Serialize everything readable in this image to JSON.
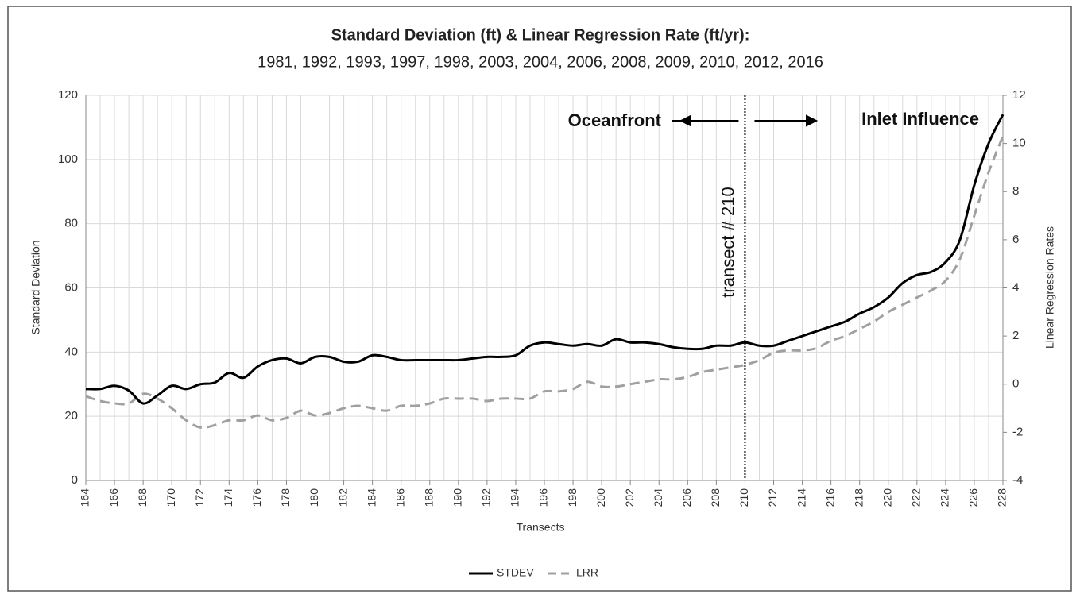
{
  "chart_data": {
    "type": "line",
    "title": "Standard Deviation (ft) & Linear Regression Rate (ft/yr):",
    "subtitle": "1981, 1992, 1993, 1997, 1998, 2003, 2004, 2006, 2008, 2009, 2010, 2012, 2016",
    "xlabel": "Transects",
    "ylabel": "Standard Deviation",
    "y2label": "Linear Regression Rates",
    "x": [
      164,
      165,
      166,
      167,
      168,
      169,
      170,
      171,
      172,
      173,
      174,
      175,
      176,
      177,
      178,
      179,
      180,
      181,
      182,
      183,
      184,
      185,
      186,
      187,
      188,
      189,
      190,
      191,
      192,
      193,
      194,
      195,
      196,
      197,
      198,
      199,
      200,
      201,
      202,
      203,
      204,
      205,
      206,
      207,
      208,
      209,
      210,
      211,
      212,
      213,
      214,
      215,
      216,
      217,
      218,
      219,
      220,
      221,
      222,
      223,
      224,
      225,
      226,
      227,
      228
    ],
    "series": [
      {
        "name": "STDEV",
        "color": "#000000",
        "values": [
          28.5,
          28.5,
          29.5,
          28,
          24,
          26.5,
          29.5,
          28.5,
          30,
          30.5,
          33.5,
          32,
          35.5,
          37.5,
          38,
          36.5,
          38.5,
          38.5,
          37,
          37,
          39,
          38.5,
          37.5,
          37.5,
          37.5,
          37.5,
          37.5,
          38,
          38.5,
          38.5,
          39,
          42,
          43,
          42.5,
          42,
          42.5,
          42,
          44,
          43,
          43,
          42.5,
          41.5,
          41,
          41,
          42,
          42,
          43,
          42,
          42,
          43.5,
          45,
          46.5,
          48,
          49.5,
          52,
          54,
          57,
          61.5,
          64,
          65,
          68,
          75,
          92,
          105,
          114
        ]
      },
      {
        "name": "LRR",
        "color": "#a0a0a0",
        "axis": "y2",
        "dashed": true,
        "values": [
          -0.5,
          -0.7,
          -0.8,
          -0.8,
          -0.4,
          -0.6,
          -1.0,
          -1.5,
          -1.8,
          -1.7,
          -1.5,
          -1.5,
          -1.3,
          -1.5,
          -1.4,
          -1.1,
          -1.3,
          -1.2,
          -1.0,
          -0.9,
          -1.0,
          -1.1,
          -0.9,
          -0.9,
          -0.8,
          -0.6,
          -0.6,
          -0.6,
          -0.7,
          -0.6,
          -0.6,
          -0.6,
          -0.3,
          -0.3,
          -0.2,
          0.1,
          -0.1,
          -0.1,
          0.0,
          0.1,
          0.2,
          0.2,
          0.3,
          0.5,
          0.6,
          0.7,
          0.8,
          1.0,
          1.3,
          1.4,
          1.4,
          1.5,
          1.8,
          2.0,
          2.3,
          2.6,
          3.0,
          3.3,
          3.6,
          3.9,
          4.3,
          5.2,
          7.0,
          8.8,
          10.3
        ]
      }
    ],
    "xlim": [
      164,
      228
    ],
    "xticks": [
      164,
      166,
      168,
      170,
      172,
      174,
      176,
      178,
      180,
      182,
      184,
      186,
      188,
      190,
      192,
      194,
      196,
      198,
      200,
      202,
      204,
      206,
      208,
      210,
      212,
      214,
      216,
      218,
      220,
      222,
      224,
      226,
      228
    ],
    "ylim": [
      0,
      120
    ],
    "yticks": [
      0,
      20,
      40,
      60,
      80,
      100,
      120
    ],
    "y2lim": [
      -4,
      12
    ],
    "y2ticks": [
      -4,
      -2,
      0,
      2,
      4,
      6,
      8,
      10,
      12
    ],
    "grid": true,
    "legend": "bottom",
    "annotations": {
      "vertical_line": 210,
      "label": "transect # 210",
      "left": "Oceanfront",
      "right": "Inlet Influence"
    }
  }
}
